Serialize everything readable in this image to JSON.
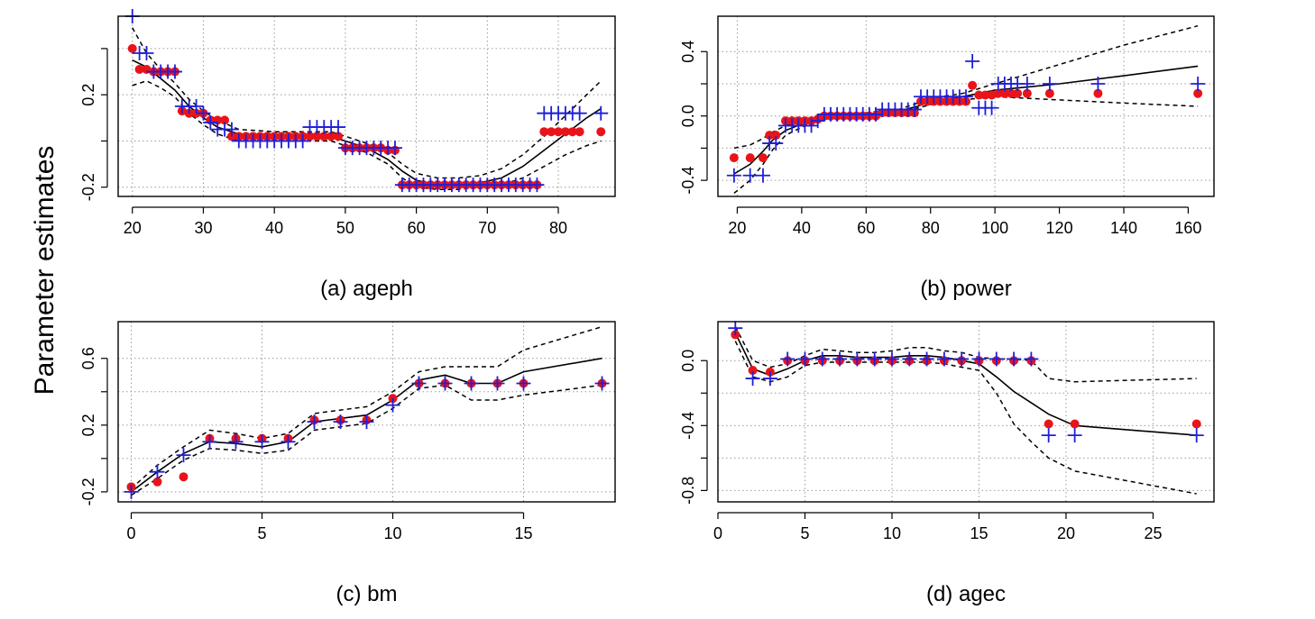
{
  "ylabel": "Parameter estimates",
  "colors": {
    "observed": "#e8141a",
    "estimated": "#1f1fd9",
    "line": "#000000",
    "grid": "#9a9a9a"
  },
  "chart_data": [
    {
      "type": "scatter",
      "title": "(a) ageph",
      "xlim": [
        18,
        88
      ],
      "ylim": [
        -0.24,
        0.54
      ],
      "xticks": [
        20,
        30,
        40,
        50,
        60,
        70,
        80
      ],
      "yticks": [
        -0.2,
        0.0,
        0.2,
        0.4
      ],
      "yticklabels": [
        "-0.2",
        "",
        "0.2",
        ""
      ],
      "xgrid": [
        20,
        30,
        40,
        50,
        60,
        70,
        80
      ],
      "ygrid": [
        -0.2,
        0.0,
        0.2,
        0.4
      ],
      "grid": true,
      "points_x": [
        20,
        21,
        22,
        23,
        24,
        25,
        26,
        27,
        28,
        29,
        30,
        31,
        32,
        33,
        34,
        35,
        36,
        37,
        38,
        39,
        40,
        41,
        42,
        43,
        44,
        45,
        46,
        47,
        48,
        49,
        50,
        51,
        52,
        53,
        54,
        55,
        56,
        57,
        58,
        59,
        60,
        61,
        62,
        63,
        64,
        65,
        66,
        67,
        68,
        69,
        70,
        71,
        72,
        73,
        74,
        75,
        76,
        77,
        78,
        79,
        80,
        81,
        82,
        83,
        86
      ],
      "observed": [
        0.4,
        0.31,
        0.31,
        0.3,
        0.3,
        0.3,
        0.3,
        0.13,
        0.12,
        0.12,
        0.12,
        0.09,
        0.09,
        0.09,
        0.02,
        0.02,
        0.02,
        0.02,
        0.02,
        0.02,
        0.02,
        0.02,
        0.02,
        0.02,
        0.02,
        0.02,
        0.02,
        0.02,
        0.02,
        0.02,
        -0.03,
        -0.03,
        -0.03,
        -0.03,
        -0.03,
        -0.03,
        -0.04,
        -0.04,
        -0.19,
        -0.19,
        -0.19,
        -0.19,
        -0.19,
        -0.19,
        -0.19,
        -0.19,
        -0.19,
        -0.19,
        -0.19,
        -0.19,
        -0.19,
        -0.19,
        -0.19,
        -0.19,
        -0.19,
        -0.19,
        -0.19,
        -0.19,
        0.04,
        0.04,
        0.04,
        0.04,
        0.04,
        0.04,
        0.04
      ],
      "estimated": [
        0.54,
        0.38,
        0.38,
        0.3,
        0.3,
        0.3,
        0.3,
        0.15,
        0.15,
        0.15,
        0.12,
        0.08,
        0.05,
        0.05,
        0.05,
        0.0,
        0.0,
        0.0,
        0.0,
        0.0,
        0.0,
        0.0,
        0.0,
        0.0,
        0.0,
        0.06,
        0.06,
        0.06,
        0.06,
        0.06,
        -0.03,
        -0.03,
        -0.03,
        -0.03,
        -0.03,
        -0.03,
        -0.03,
        -0.03,
        -0.19,
        -0.19,
        -0.19,
        -0.19,
        -0.19,
        -0.19,
        -0.19,
        -0.19,
        -0.19,
        -0.19,
        -0.19,
        -0.19,
        -0.19,
        -0.19,
        -0.19,
        -0.19,
        -0.19,
        -0.19,
        -0.19,
        -0.19,
        0.12,
        0.12,
        0.12,
        0.12,
        0.12,
        0.12,
        0.12
      ],
      "fit_x": [
        20,
        22,
        24,
        26,
        28,
        30,
        32,
        35,
        40,
        45,
        48,
        50,
        53,
        56,
        58,
        60,
        63,
        66,
        69,
        72,
        75,
        78,
        81,
        84,
        86
      ],
      "fit": [
        0.35,
        0.32,
        0.27,
        0.22,
        0.15,
        0.1,
        0.06,
        0.03,
        0.02,
        0.02,
        0.02,
        0.0,
        -0.03,
        -0.08,
        -0.13,
        -0.17,
        -0.19,
        -0.19,
        -0.18,
        -0.16,
        -0.11,
        -0.04,
        0.03,
        0.1,
        0.14
      ],
      "upper": [
        0.49,
        0.38,
        0.31,
        0.25,
        0.18,
        0.13,
        0.09,
        0.05,
        0.04,
        0.04,
        0.04,
        0.02,
        -0.01,
        -0.05,
        -0.1,
        -0.14,
        -0.16,
        -0.16,
        -0.15,
        -0.12,
        -0.06,
        0.02,
        0.11,
        0.2,
        0.26
      ],
      "lower": [
        0.24,
        0.26,
        0.23,
        0.19,
        0.12,
        0.07,
        0.03,
        0.0,
        0.0,
        0.0,
        0.0,
        -0.02,
        -0.05,
        -0.1,
        -0.16,
        -0.2,
        -0.21,
        -0.21,
        -0.2,
        -0.19,
        -0.16,
        -0.11,
        -0.06,
        -0.02,
        0.0
      ]
    },
    {
      "type": "scatter",
      "title": "(b) power",
      "xlim": [
        14,
        168
      ],
      "ylim": [
        -0.5,
        0.62
      ],
      "xticks": [
        20,
        40,
        60,
        80,
        100,
        120,
        140,
        160
      ],
      "yticks": [
        -0.4,
        -0.2,
        0.0,
        0.2,
        0.4
      ],
      "yticklabels": [
        "-0.4",
        "",
        "0.0",
        "",
        "0.4"
      ],
      "xgrid": [
        20,
        60,
        100,
        140
      ],
      "ygrid": [
        -0.4,
        -0.2,
        0.0,
        0.2,
        0.4
      ],
      "grid": true,
      "points_x": [
        19,
        24,
        28,
        30,
        32,
        35,
        37,
        39,
        41,
        43,
        45,
        47,
        49,
        51,
        53,
        55,
        57,
        59,
        61,
        63,
        65,
        67,
        69,
        71,
        73,
        75,
        77,
        79,
        81,
        83,
        85,
        87,
        89,
        91,
        93,
        95,
        97,
        99,
        101,
        103,
        105,
        107,
        110,
        117,
        132,
        163
      ],
      "observed": [
        -0.26,
        -0.26,
        -0.26,
        -0.12,
        -0.12,
        -0.03,
        -0.03,
        -0.03,
        -0.03,
        -0.03,
        -0.02,
        0.0,
        0.0,
        0.0,
        0.0,
        0.0,
        0.0,
        0.0,
        0.0,
        0.0,
        0.02,
        0.02,
        0.02,
        0.02,
        0.02,
        0.02,
        0.09,
        0.09,
        0.09,
        0.09,
        0.09,
        0.09,
        0.09,
        0.09,
        0.19,
        0.13,
        0.13,
        0.13,
        0.14,
        0.14,
        0.14,
        0.14,
        0.14,
        0.14,
        0.14,
        0.14
      ],
      "estimated": [
        -0.37,
        -0.37,
        -0.37,
        -0.17,
        -0.17,
        -0.06,
        -0.06,
        -0.06,
        -0.06,
        -0.06,
        -0.03,
        0.01,
        0.01,
        0.01,
        0.01,
        0.01,
        0.01,
        0.01,
        0.01,
        0.01,
        0.04,
        0.04,
        0.04,
        0.04,
        0.04,
        0.04,
        0.12,
        0.12,
        0.12,
        0.12,
        0.12,
        0.12,
        0.12,
        0.12,
        0.34,
        0.05,
        0.05,
        0.05,
        0.2,
        0.2,
        0.2,
        0.2,
        0.2,
        0.2,
        0.2,
        0.2
      ],
      "fit_x": [
        19,
        24,
        28,
        31,
        35,
        40,
        45,
        50,
        60,
        70,
        76,
        80,
        90,
        100,
        120,
        140,
        163
      ],
      "fit": [
        -0.36,
        -0.3,
        -0.22,
        -0.15,
        -0.09,
        -0.05,
        -0.02,
        0.0,
        0.01,
        0.03,
        0.06,
        0.09,
        0.12,
        0.16,
        0.2,
        0.25,
        0.31
      ],
      "upper": [
        -0.2,
        -0.18,
        -0.14,
        -0.1,
        -0.06,
        -0.03,
        -0.01,
        0.01,
        0.02,
        0.04,
        0.08,
        0.11,
        0.14,
        0.2,
        0.32,
        0.44,
        0.56
      ],
      "lower": [
        -0.48,
        -0.4,
        -0.3,
        -0.21,
        -0.12,
        -0.07,
        -0.03,
        -0.01,
        0.0,
        0.02,
        0.05,
        0.07,
        0.1,
        0.12,
        0.1,
        0.08,
        0.06
      ]
    },
    {
      "type": "scatter",
      "title": "(c) bm",
      "xlim": [
        -0.5,
        18.5
      ],
      "ylim": [
        -0.26,
        0.82
      ],
      "xticks": [
        0,
        5,
        10,
        15
      ],
      "yticks": [
        -0.2,
        0.0,
        0.2,
        0.4,
        0.6
      ],
      "yticklabels": [
        "-0.2",
        "",
        "0.2",
        "",
        "0.6"
      ],
      "xgrid": [
        0,
        5,
        10,
        15
      ],
      "ygrid": [
        -0.2,
        0.0,
        0.2,
        0.4,
        0.6
      ],
      "grid": true,
      "points_x": [
        0,
        1,
        2,
        3,
        4,
        5,
        6,
        7,
        8,
        9,
        10,
        11,
        12,
        13,
        14,
        15,
        18
      ],
      "observed": [
        -0.17,
        -0.14,
        -0.11,
        0.12,
        0.12,
        0.12,
        0.12,
        0.23,
        0.23,
        0.23,
        0.36,
        0.45,
        0.45,
        0.45,
        0.45,
        0.45,
        0.45
      ],
      "estimated": [
        -0.2,
        -0.08,
        0.02,
        0.1,
        0.1,
        0.1,
        0.1,
        0.22,
        0.22,
        0.22,
        0.32,
        0.45,
        0.45,
        0.45,
        0.45,
        0.45,
        0.45
      ],
      "fit_x": [
        0,
        1,
        2,
        3,
        4,
        5,
        6,
        7,
        8,
        9,
        10,
        11,
        12,
        13,
        14,
        15,
        18
      ],
      "fit": [
        -0.2,
        -0.08,
        0.03,
        0.1,
        0.09,
        0.07,
        0.1,
        0.22,
        0.24,
        0.26,
        0.35,
        0.47,
        0.5,
        0.45,
        0.45,
        0.52,
        0.6
      ],
      "upper": [
        -0.18,
        -0.04,
        0.07,
        0.17,
        0.15,
        0.12,
        0.15,
        0.27,
        0.29,
        0.31,
        0.4,
        0.52,
        0.55,
        0.55,
        0.55,
        0.65,
        0.79
      ],
      "lower": [
        -0.22,
        -0.12,
        -0.01,
        0.06,
        0.05,
        0.03,
        0.05,
        0.17,
        0.19,
        0.21,
        0.3,
        0.42,
        0.44,
        0.35,
        0.35,
        0.38,
        0.44
      ]
    },
    {
      "type": "scatter",
      "title": "(d) agec",
      "xlim": [
        0,
        28.5
      ],
      "ylim": [
        -0.87,
        0.24
      ],
      "xticks": [
        0,
        5,
        10,
        15,
        20,
        25
      ],
      "yticks": [
        -0.8,
        -0.6,
        -0.4,
        -0.2,
        0.0
      ],
      "yticklabels": [
        "-0.8",
        "",
        "-0.4",
        "",
        "0.0"
      ],
      "xgrid": [
        5,
        10,
        15,
        20,
        25
      ],
      "ygrid": [
        -0.8,
        -0.6,
        -0.4,
        -0.2,
        0.0
      ],
      "grid": true,
      "points_x": [
        1,
        2,
        3,
        4,
        5,
        6,
        7,
        8,
        9,
        10,
        11,
        12,
        13,
        14,
        15,
        16,
        17,
        18,
        19,
        20.5,
        27.5
      ],
      "observed": [
        0.16,
        -0.06,
        -0.07,
        0.0,
        0.0,
        0.0,
        0.0,
        0.0,
        0.0,
        0.0,
        0.0,
        0.0,
        0.0,
        0.0,
        0.0,
        0.0,
        0.0,
        0.0,
        -0.39,
        -0.39,
        -0.39
      ],
      "estimated": [
        0.2,
        -0.11,
        -0.11,
        0.01,
        0.01,
        0.01,
        0.01,
        0.01,
        0.01,
        0.01,
        0.01,
        0.01,
        0.01,
        0.01,
        0.01,
        0.01,
        0.01,
        0.01,
        -0.46,
        -0.46,
        -0.46
      ],
      "fit_x": [
        1,
        2,
        3,
        4,
        5,
        6,
        7,
        8,
        9,
        10,
        11,
        12,
        13,
        14,
        15,
        16,
        17,
        18,
        19,
        20.5,
        27.5
      ],
      "fit": [
        0.17,
        -0.05,
        -0.09,
        -0.05,
        0.0,
        0.03,
        0.03,
        0.02,
        0.02,
        0.02,
        0.03,
        0.03,
        0.02,
        0.0,
        -0.02,
        -0.1,
        -0.19,
        -0.26,
        -0.33,
        -0.4,
        -0.46
      ],
      "upper": [
        0.21,
        0.0,
        -0.04,
        -0.02,
        0.03,
        0.07,
        0.06,
        0.05,
        0.05,
        0.06,
        0.08,
        0.08,
        0.06,
        0.05,
        0.02,
        0.01,
        0.01,
        0.0,
        -0.11,
        -0.13,
        -0.11
      ],
      "lower": [
        0.12,
        -0.1,
        -0.13,
        -0.1,
        -0.03,
        -0.01,
        -0.01,
        -0.01,
        -0.01,
        -0.01,
        -0.01,
        -0.01,
        -0.02,
        -0.04,
        -0.06,
        -0.2,
        -0.39,
        -0.5,
        -0.6,
        -0.68,
        -0.82
      ]
    }
  ]
}
